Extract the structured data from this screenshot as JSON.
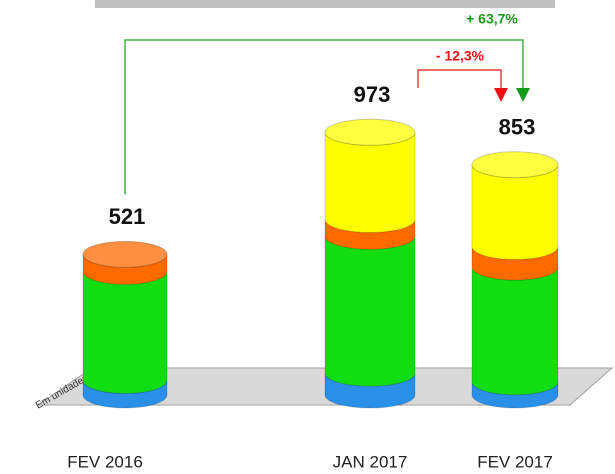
{
  "chart_data": {
    "type": "stacked-cylinder",
    "categories": [
      "FEV 2016",
      "JAN 2017",
      "FEV 2017"
    ],
    "series": [
      {
        "color": "#2a8fe6",
        "values": [
          54,
          81,
          49
        ]
      },
      {
        "color": "#11dd11",
        "values": [
          404,
          507,
          425
        ]
      },
      {
        "color": "#ff6a00",
        "values": [
          63,
          62,
          76
        ]
      },
      {
        "color": "#ffff00",
        "values": [
          0,
          323,
          303
        ]
      }
    ],
    "totals": [
      521,
      973,
      853
    ],
    "unit_note": "Em unidades",
    "annotations": [
      {
        "text": "+ 63,7%",
        "color": "#1a9a1a"
      },
      {
        "text": "- 12,3%",
        "color": "#ee1111"
      }
    ]
  }
}
